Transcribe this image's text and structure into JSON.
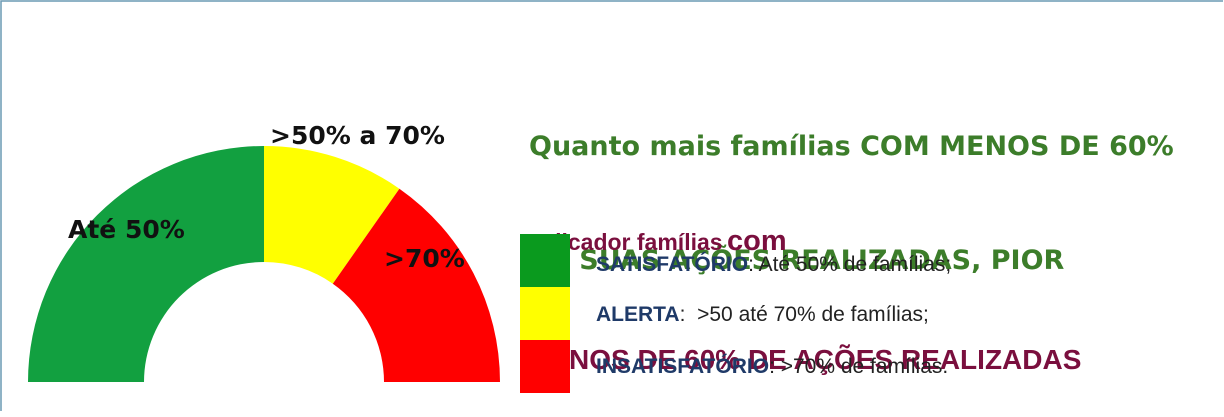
{
  "title": {
    "lines": [
      "Quanto mais famílias COM MENOS DE 60%",
      "DE SUAS AÇÕES REALIZADAS, PIOR"
    ]
  },
  "indicator": {
    "prefix": "Indicador famílias",
    "word": "com",
    "line2": "MENOS DE 60% DE AÇÕES REALIZADAS"
  },
  "gauge": {
    "segments": [
      {
        "label": "Até 50%"
      },
      {
        "label": ">50% a 70%"
      },
      {
        "label": ">70%"
      }
    ]
  },
  "legend": [
    {
      "term": "SATISFATÓRIO",
      "text": ": Até 50% de famílias;"
    },
    {
      "term": "ALERTA",
      "text": ":  >50 até 70% de famílias;"
    },
    {
      "term": "INSATISFATÓRIO",
      "text": ": >70% de famílias."
    }
  ]
}
